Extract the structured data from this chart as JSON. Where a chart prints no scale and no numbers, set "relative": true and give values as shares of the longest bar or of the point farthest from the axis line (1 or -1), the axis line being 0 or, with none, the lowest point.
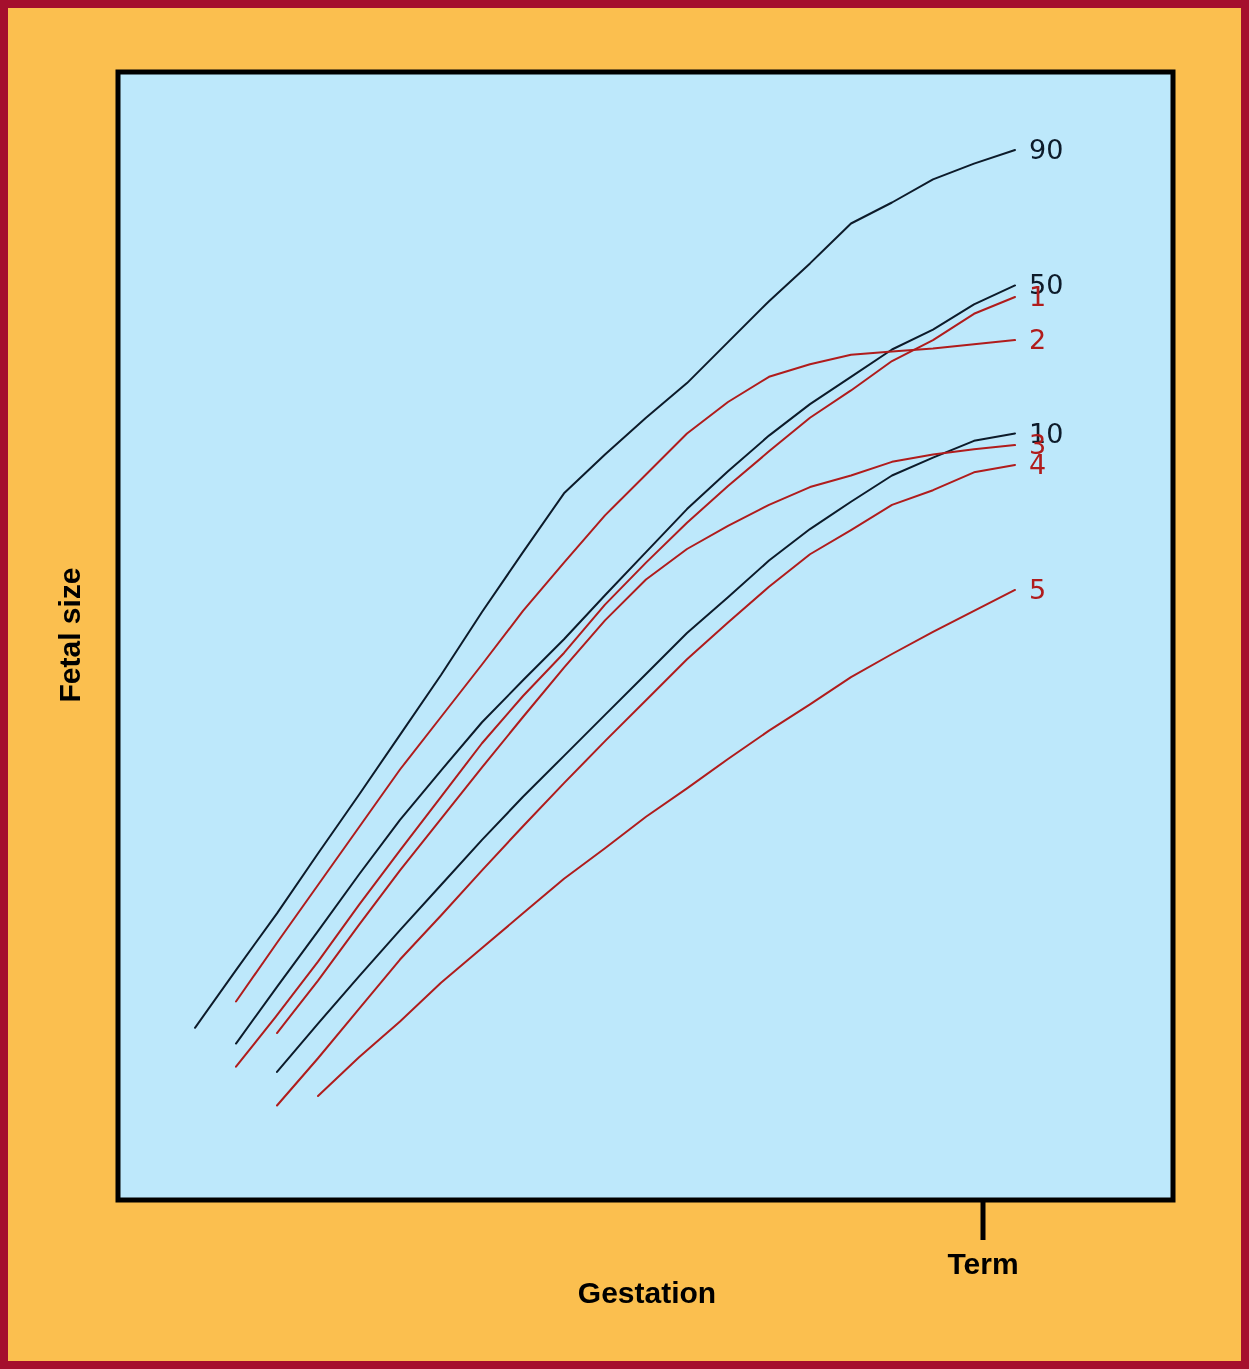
{
  "chart_data": {
    "type": "line",
    "relative": true,
    "xlabel": "Gestation",
    "ylabel": "Fetal size",
    "annotations": [
      "Term"
    ],
    "marker": "none",
    "line_style": "solid",
    "categories": [
      null,
      null,
      null,
      null,
      null,
      null,
      null,
      null,
      null,
      null,
      null,
      null,
      null,
      null,
      null,
      null,
      null,
      null,
      null,
      null,
      null
    ],
    "series": [
      {
        "name": "90",
        "color": "#0d1b2a",
        "values": [
          0.164,
          0.219,
          0.273,
          0.33,
          0.386,
          0.443,
          0.5,
          0.56,
          0.617,
          0.673,
          0.71,
          0.745,
          0.778,
          0.817,
          0.856,
          0.892,
          0.93,
          0.95,
          0.972,
          0.987,
          1
        ]
      },
      {
        "name": "50",
        "color": "#0d1b2a",
        "values": [
          null,
          0.149,
          0.203,
          0.256,
          0.31,
          0.362,
          0.409,
          0.455,
          0.495,
          0.534,
          0.576,
          0.617,
          0.658,
          0.694,
          0.728,
          0.758,
          0.784,
          0.81,
          0.829,
          0.853,
          0.871
        ]
      },
      {
        "name": "1",
        "color": "#b01c1c",
        "values": [
          null,
          0.127,
          0.176,
          0.227,
          0.281,
          0.333,
          0.384,
          0.435,
          0.48,
          0.521,
          0.567,
          0.607,
          0.645,
          0.68,
          0.713,
          0.745,
          0.771,
          0.799,
          0.819,
          0.844,
          0.86
        ]
      },
      {
        "name": "2",
        "color": "#b01c1c",
        "values": [
          null,
          0.189,
          0.245,
          0.3,
          0.355,
          0.41,
          0.46,
          0.51,
          0.561,
          0.607,
          0.652,
          0.691,
          0.73,
          0.76,
          0.784,
          0.796,
          0.805,
          0.808,
          0.811,
          0.815,
          0.819
        ]
      },
      {
        "name": "10",
        "color": "#0d1b2a",
        "values": [
          null,
          null,
          0.122,
          0.168,
          0.213,
          0.257,
          0.3,
          0.343,
          0.384,
          0.423,
          0.462,
          0.501,
          0.54,
          0.574,
          0.609,
          0.639,
          0.665,
          0.69,
          0.707,
          0.723,
          0.73
        ]
      },
      {
        "name": "3",
        "color": "#b01c1c",
        "values": [
          null,
          null,
          0.159,
          0.209,
          0.262,
          0.314,
          0.363,
          0.412,
          0.46,
          0.507,
          0.552,
          0.591,
          0.62,
          0.642,
          0.662,
          0.679,
          0.69,
          0.703,
          0.71,
          0.715,
          0.719
        ]
      },
      {
        "name": "4",
        "color": "#b01c1c",
        "values": [
          null,
          null,
          0.09,
          0.135,
          0.182,
          0.229,
          0.271,
          0.314,
          0.356,
          0.397,
          0.437,
          0.476,
          0.515,
          0.55,
          0.584,
          0.615,
          0.638,
          0.662,
          0.676,
          0.693,
          0.7
        ]
      },
      {
        "name": "5",
        "color": "#b01c1c",
        "values": [
          null,
          null,
          null,
          0.099,
          0.136,
          0.17,
          0.207,
          0.24,
          0.273,
          0.306,
          0.335,
          0.365,
          0.392,
          0.42,
          0.447,
          0.472,
          0.498,
          0.52,
          0.541,
          0.561,
          0.581
        ]
      }
    ]
  }
}
